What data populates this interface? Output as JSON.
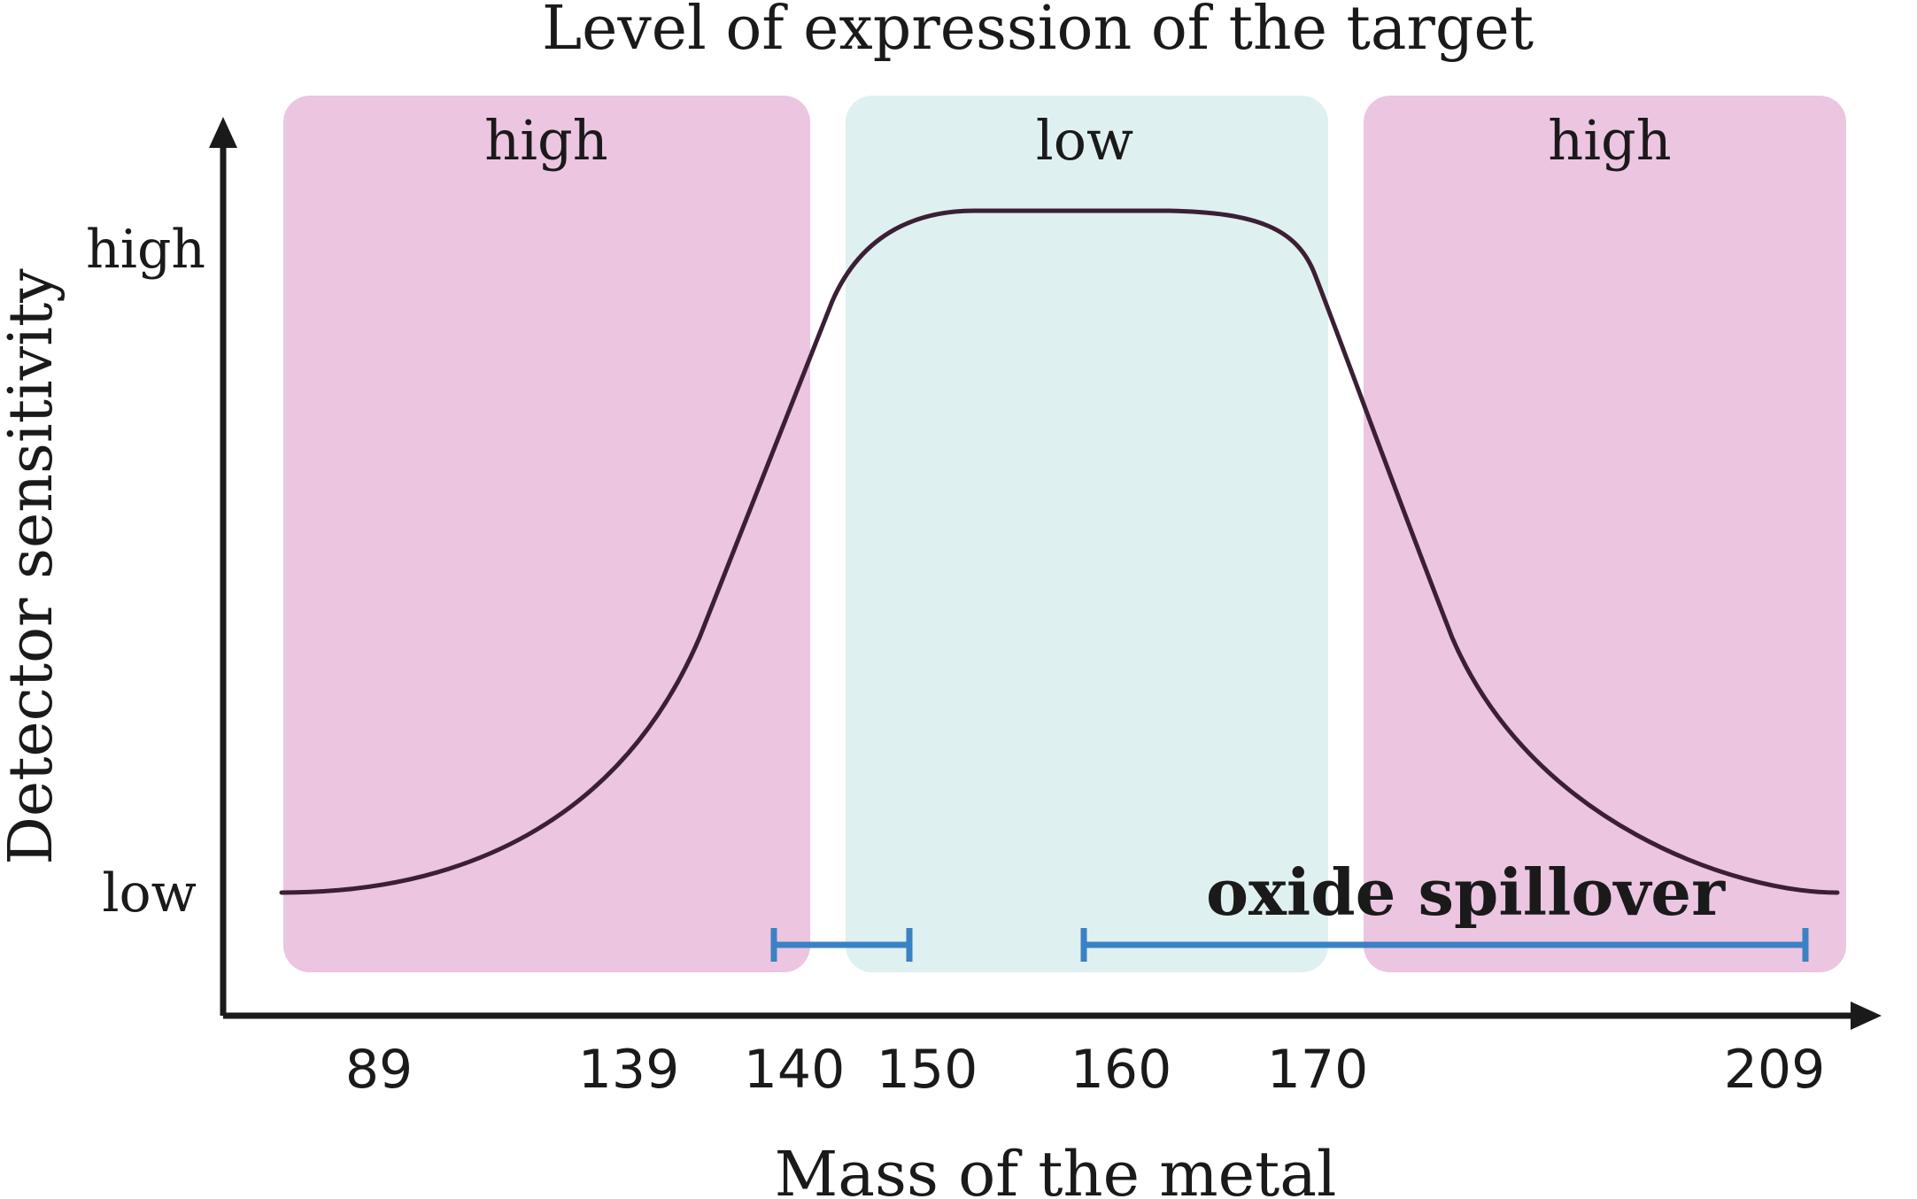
{
  "title": "Level of expression of the target",
  "xlabel": "Mass of the metal",
  "ylabel": "Detector sensitivity",
  "y_ticks": [
    "high",
    "low"
  ],
  "x_ticks": [
    "89",
    "139",
    "140",
    "150",
    "160",
    "170",
    "209"
  ],
  "regions": [
    {
      "label": "high",
      "color": "#ecc5e0"
    },
    {
      "label": "low",
      "color": "#dff0f0"
    },
    {
      "label": "high",
      "color": "#ecc5e0"
    }
  ],
  "spillover": {
    "label": "oxide spillover",
    "color": "#3a82c4"
  },
  "curve_color": "#3b1f35"
}
